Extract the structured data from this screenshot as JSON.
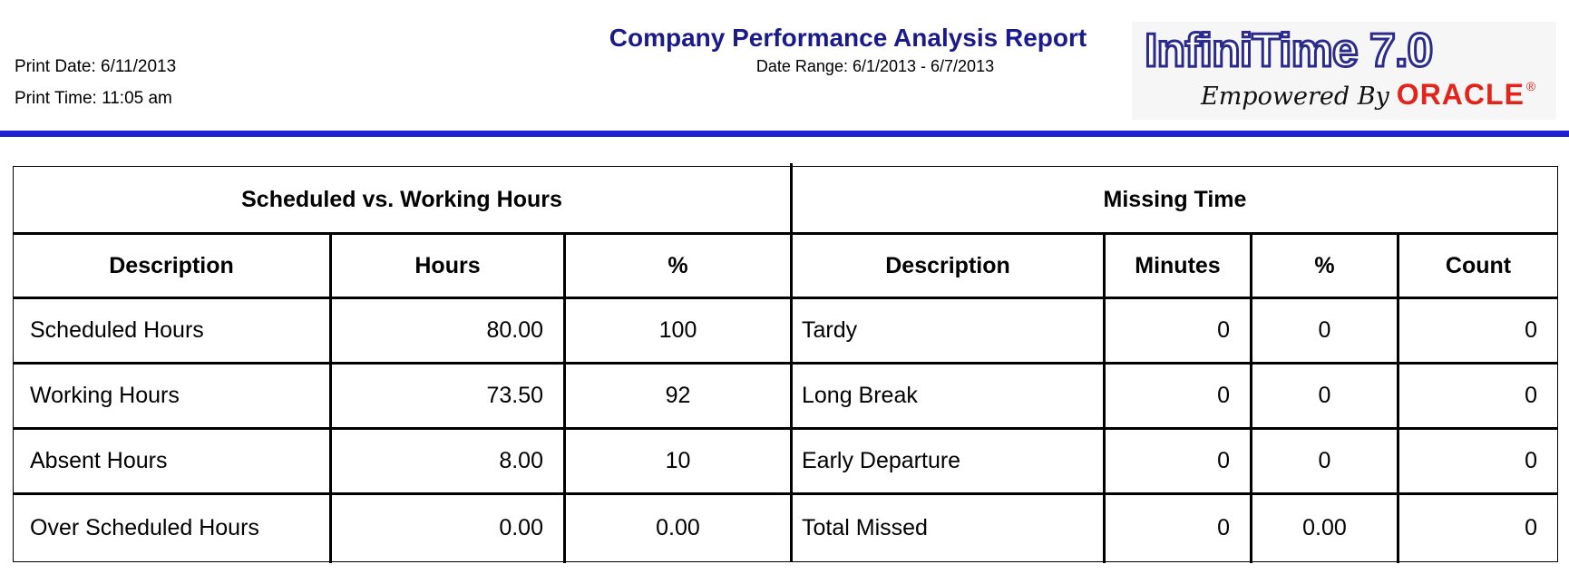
{
  "header": {
    "print_date": "Print Date: 6/11/2013",
    "print_time": "Print Time: 11:05 am",
    "title": "Company Performance Analysis Report",
    "date_range": "Date Range:  6/1/2013 - 6/7/2013"
  },
  "logo": {
    "product": "InfiniTime 7.0",
    "tagline": "Empowered By",
    "brand": "ORACLE",
    "registered": "®",
    "brand_color": "#e3241b",
    "product_color": "#2b2b8e"
  },
  "colors": {
    "title": "#1a1a8c",
    "rule": "#1f1fd8"
  },
  "scheduled": {
    "section_title": "Scheduled vs. Working Hours",
    "columns": [
      "Description",
      "Hours",
      "%"
    ],
    "rows": [
      [
        "Scheduled Hours",
        "80.00",
        "100"
      ],
      [
        "Working Hours",
        "73.50",
        "92"
      ],
      [
        "Absent Hours",
        "8.00",
        "10"
      ],
      [
        "Over Scheduled Hours",
        "0.00",
        "0.00"
      ]
    ]
  },
  "missing": {
    "section_title": "Missing Time",
    "columns": [
      "Description",
      "Minutes",
      "%",
      "Count"
    ],
    "rows": [
      [
        "Tardy",
        "0",
        "0",
        "0"
      ],
      [
        "Long Break",
        "0",
        "0",
        "0"
      ],
      [
        "Early Departure",
        "0",
        "0",
        "0"
      ],
      [
        "Total Missed",
        "0",
        "0.00",
        "0"
      ]
    ]
  }
}
